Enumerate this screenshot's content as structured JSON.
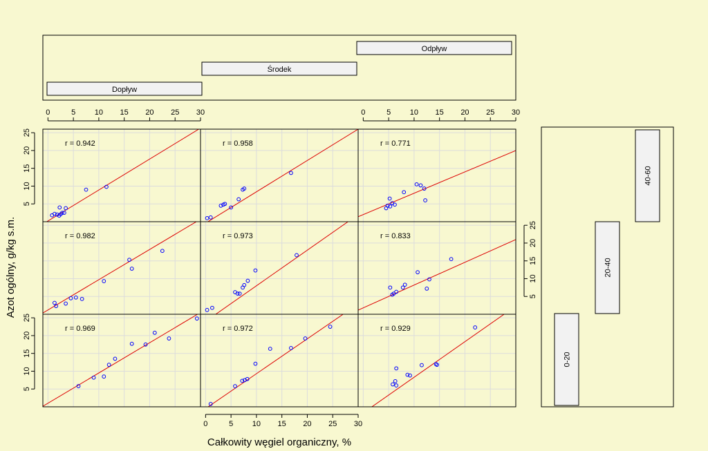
{
  "chart_data": {
    "type": "scatter",
    "title": "",
    "xlabel": "Całkowity węgiel organiczny, %",
    "ylabel": "Azot ogólny, g/kg s.m.",
    "xlim": [
      -1,
      30
    ],
    "ylim": [
      0,
      26
    ],
    "x_ticks": [
      0,
      5,
      10,
      15,
      20,
      25,
      30
    ],
    "y_ticks": [
      5,
      10,
      15,
      20,
      25
    ],
    "grid": true,
    "point_color": "#0000ff",
    "fit_color": "#dd0000",
    "column_strips": [
      "Dopływ",
      "Środek",
      "Odpływ"
    ],
    "row_strips": [
      "40-60",
      "20-40",
      "0-20"
    ],
    "panels": [
      {
        "column": "Dopływ",
        "row": "40-60",
        "r_label": "r = 0.942",
        "fit": {
          "intercept": 0.2,
          "slope": 0.87
        },
        "points": [
          [
            0.8,
            1.8
          ],
          [
            1.3,
            2.2
          ],
          [
            1.8,
            2.0
          ],
          [
            2.2,
            1.7
          ],
          [
            2.5,
            2.1
          ],
          [
            2.3,
            4.0
          ],
          [
            2.8,
            2.5
          ],
          [
            3.2,
            2.5
          ],
          [
            3.5,
            3.8
          ],
          [
            7.5,
            9.0
          ],
          [
            11.5,
            9.8
          ]
        ]
      },
      {
        "column": "Środek",
        "row": "40-60",
        "r_label": "r = 0.958",
        "fit": {
          "intercept": -0.4,
          "slope": 0.88
        },
        "points": [
          [
            0.3,
            1.0
          ],
          [
            1.0,
            1.2
          ],
          [
            3.0,
            4.5
          ],
          [
            3.5,
            4.8
          ],
          [
            3.8,
            5.0
          ],
          [
            5.0,
            4.0
          ],
          [
            6.5,
            6.3
          ],
          [
            7.3,
            9.0
          ],
          [
            7.6,
            9.3
          ],
          [
            16.8,
            13.7
          ]
        ]
      },
      {
        "column": "Odpływ",
        "row": "40-60",
        "r_label": "r = 0.771",
        "fit": {
          "intercept": 2.0,
          "slope": 0.6
        },
        "points": [
          [
            4.5,
            3.8
          ],
          [
            4.8,
            4.5
          ],
          [
            5.2,
            6.5
          ],
          [
            5.3,
            4.3
          ],
          [
            5.7,
            5.2
          ],
          [
            6.2,
            4.8
          ],
          [
            8.0,
            8.3
          ],
          [
            10.5,
            10.5
          ],
          [
            11.3,
            10.2
          ],
          [
            12.0,
            9.3
          ],
          [
            12.2,
            6.0
          ]
        ]
      },
      {
        "column": "Dopływ",
        "row": "20-40",
        "r_label": "r = 0.982",
        "fit": {
          "intercept": 1.2,
          "slope": 0.85
        },
        "points": [
          [
            1.3,
            3.2
          ],
          [
            1.6,
            2.3
          ],
          [
            3.5,
            3.0
          ],
          [
            4.5,
            4.5
          ],
          [
            5.5,
            4.7
          ],
          [
            6.7,
            4.3
          ],
          [
            11.0,
            9.3
          ],
          [
            16.0,
            15.3
          ],
          [
            16.5,
            12.8
          ],
          [
            22.5,
            17.8
          ]
        ]
      },
      {
        "column": "Środek",
        "row": "20-40",
        "r_label": "r = 0.973",
        "fit": {
          "intercept": -2.0,
          "slope": 1.0
        },
        "points": [
          [
            0.3,
            1.2
          ],
          [
            1.3,
            1.8
          ],
          [
            5.8,
            6.2
          ],
          [
            6.3,
            5.8
          ],
          [
            6.7,
            5.8
          ],
          [
            7.3,
            7.5
          ],
          [
            7.6,
            8.2
          ],
          [
            8.3,
            9.4
          ],
          [
            9.8,
            12.3
          ],
          [
            17.9,
            16.6
          ]
        ]
      },
      {
        "column": "Odpływ",
        "row": "20-40",
        "r_label": "r = 0.833",
        "fit": {
          "intercept": 1.8,
          "slope": 0.64
        },
        "points": [
          [
            5.3,
            7.5
          ],
          [
            5.7,
            5.5
          ],
          [
            6.0,
            5.8
          ],
          [
            6.5,
            6.3
          ],
          [
            7.8,
            7.5
          ],
          [
            8.2,
            8.3
          ],
          [
            10.7,
            11.8
          ],
          [
            12.5,
            7.2
          ],
          [
            13.0,
            9.8
          ],
          [
            17.3,
            15.5
          ]
        ]
      },
      {
        "column": "Dopływ",
        "row": "0-20",
        "r_label": "r = 0.969",
        "fit": {
          "intercept": 1.0,
          "slope": 0.85
        },
        "points": [
          [
            6.0,
            5.8
          ],
          [
            9.0,
            8.2
          ],
          [
            11.0,
            8.5
          ],
          [
            12.0,
            11.8
          ],
          [
            13.2,
            13.5
          ],
          [
            16.5,
            17.7
          ],
          [
            19.2,
            17.5
          ],
          [
            21.0,
            20.8
          ],
          [
            23.8,
            19.2
          ],
          [
            29.3,
            24.8
          ]
        ]
      },
      {
        "column": "Środek",
        "row": "0-20",
        "r_label": "r = 0.972",
        "fit": {
          "intercept": -0.5,
          "slope": 0.98
        },
        "points": [
          [
            1.0,
            0.8
          ],
          [
            5.8,
            5.8
          ],
          [
            7.2,
            7.3
          ],
          [
            7.7,
            7.5
          ],
          [
            8.2,
            7.8
          ],
          [
            9.8,
            12.1
          ],
          [
            12.7,
            16.3
          ],
          [
            16.8,
            16.5
          ],
          [
            19.6,
            19.2
          ],
          [
            24.5,
            22.5
          ]
        ]
      },
      {
        "column": "Odpływ",
        "row": "0-20",
        "r_label": "r = 0.929",
        "fit": {
          "intercept": -1.7,
          "slope": 1.0
        },
        "points": [
          [
            5.8,
            6.3
          ],
          [
            6.3,
            7.2
          ],
          [
            6.5,
            6.0
          ],
          [
            6.5,
            10.8
          ],
          [
            8.7,
            9.0
          ],
          [
            9.2,
            8.8
          ],
          [
            11.5,
            11.7
          ],
          [
            14.3,
            12.0
          ],
          [
            14.5,
            11.8
          ],
          [
            22.0,
            22.3
          ]
        ]
      }
    ]
  }
}
